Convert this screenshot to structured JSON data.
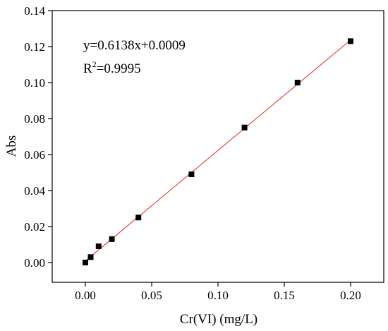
{
  "chart_data": {
    "type": "scatter",
    "xlabel": "Cr(VI) (mg/L)",
    "ylabel": "Abs",
    "xlim": [
      -0.025,
      0.225
    ],
    "ylim": [
      -0.011,
      0.14
    ],
    "x_ticks": [
      0.0,
      0.05,
      0.1,
      0.15,
      0.2
    ],
    "x_tick_labels": [
      "0.00",
      "0.05",
      "0.10",
      "0.15",
      "0.20"
    ],
    "y_ticks": [
      0.0,
      0.02,
      0.04,
      0.06,
      0.08,
      0.1,
      0.12,
      0.14
    ],
    "y_tick_labels": [
      "0.00",
      "0.02",
      "0.04",
      "0.06",
      "0.08",
      "0.10",
      "0.12",
      "0.14"
    ],
    "grid": false,
    "series": [
      {
        "x": [
          0.0,
          0.004,
          0.01,
          0.02,
          0.04,
          0.08,
          0.12,
          0.16,
          0.2
        ],
        "y": [
          0.0,
          0.003,
          0.009,
          0.013,
          0.025,
          0.049,
          0.075,
          0.1,
          0.123
        ],
        "marker": "square",
        "color": "#000000"
      }
    ],
    "fit_line": {
      "slope": 0.6138,
      "intercept": 0.0009,
      "x_range": [
        0.0,
        0.2
      ],
      "color": "#e8231f"
    },
    "annotations": {
      "equation": "y=0.6138x+0.0009",
      "r2_prefix": "R",
      "r2_sup": "2",
      "r2_value": "=0.9995"
    }
  }
}
